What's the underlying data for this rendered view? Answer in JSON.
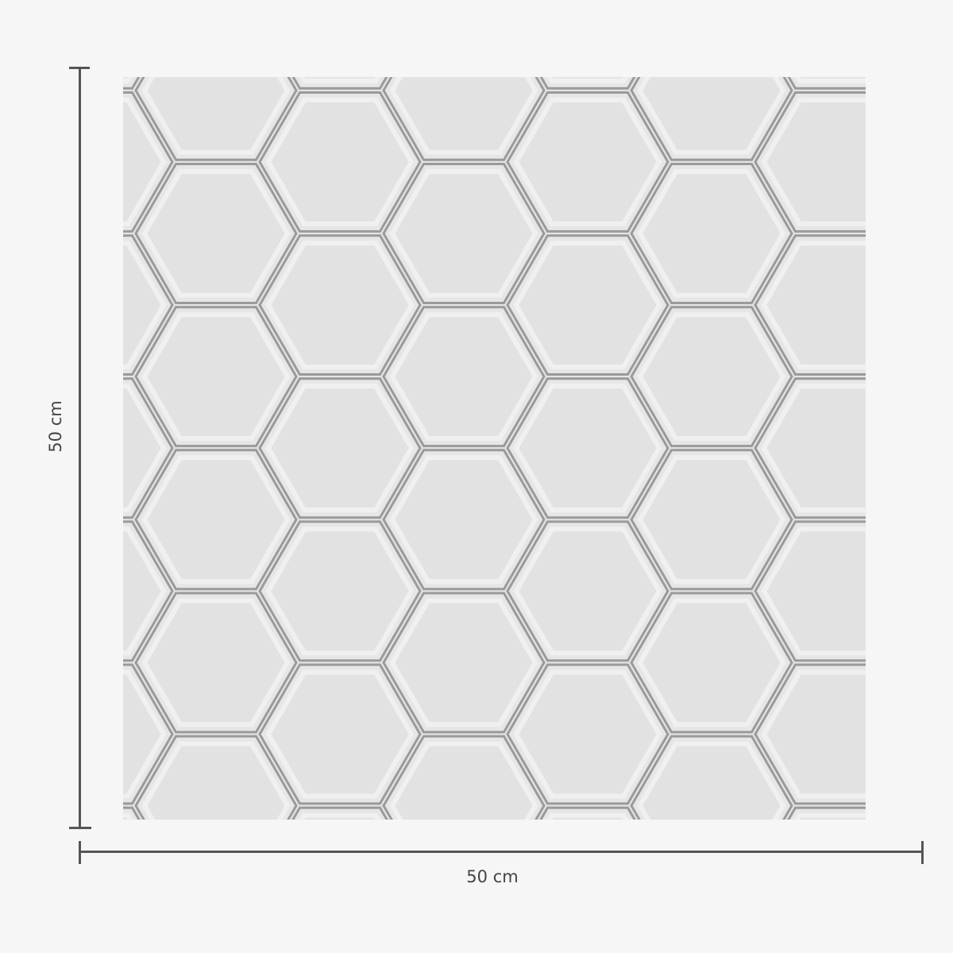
{
  "product": {
    "pattern": "hexagon-tile",
    "tile_color": "#e4e4e4",
    "grout_color": "#9a9a9a"
  },
  "dimensions": {
    "width_label": "50 cm",
    "height_label": "50 cm",
    "line_color": "#555555"
  }
}
